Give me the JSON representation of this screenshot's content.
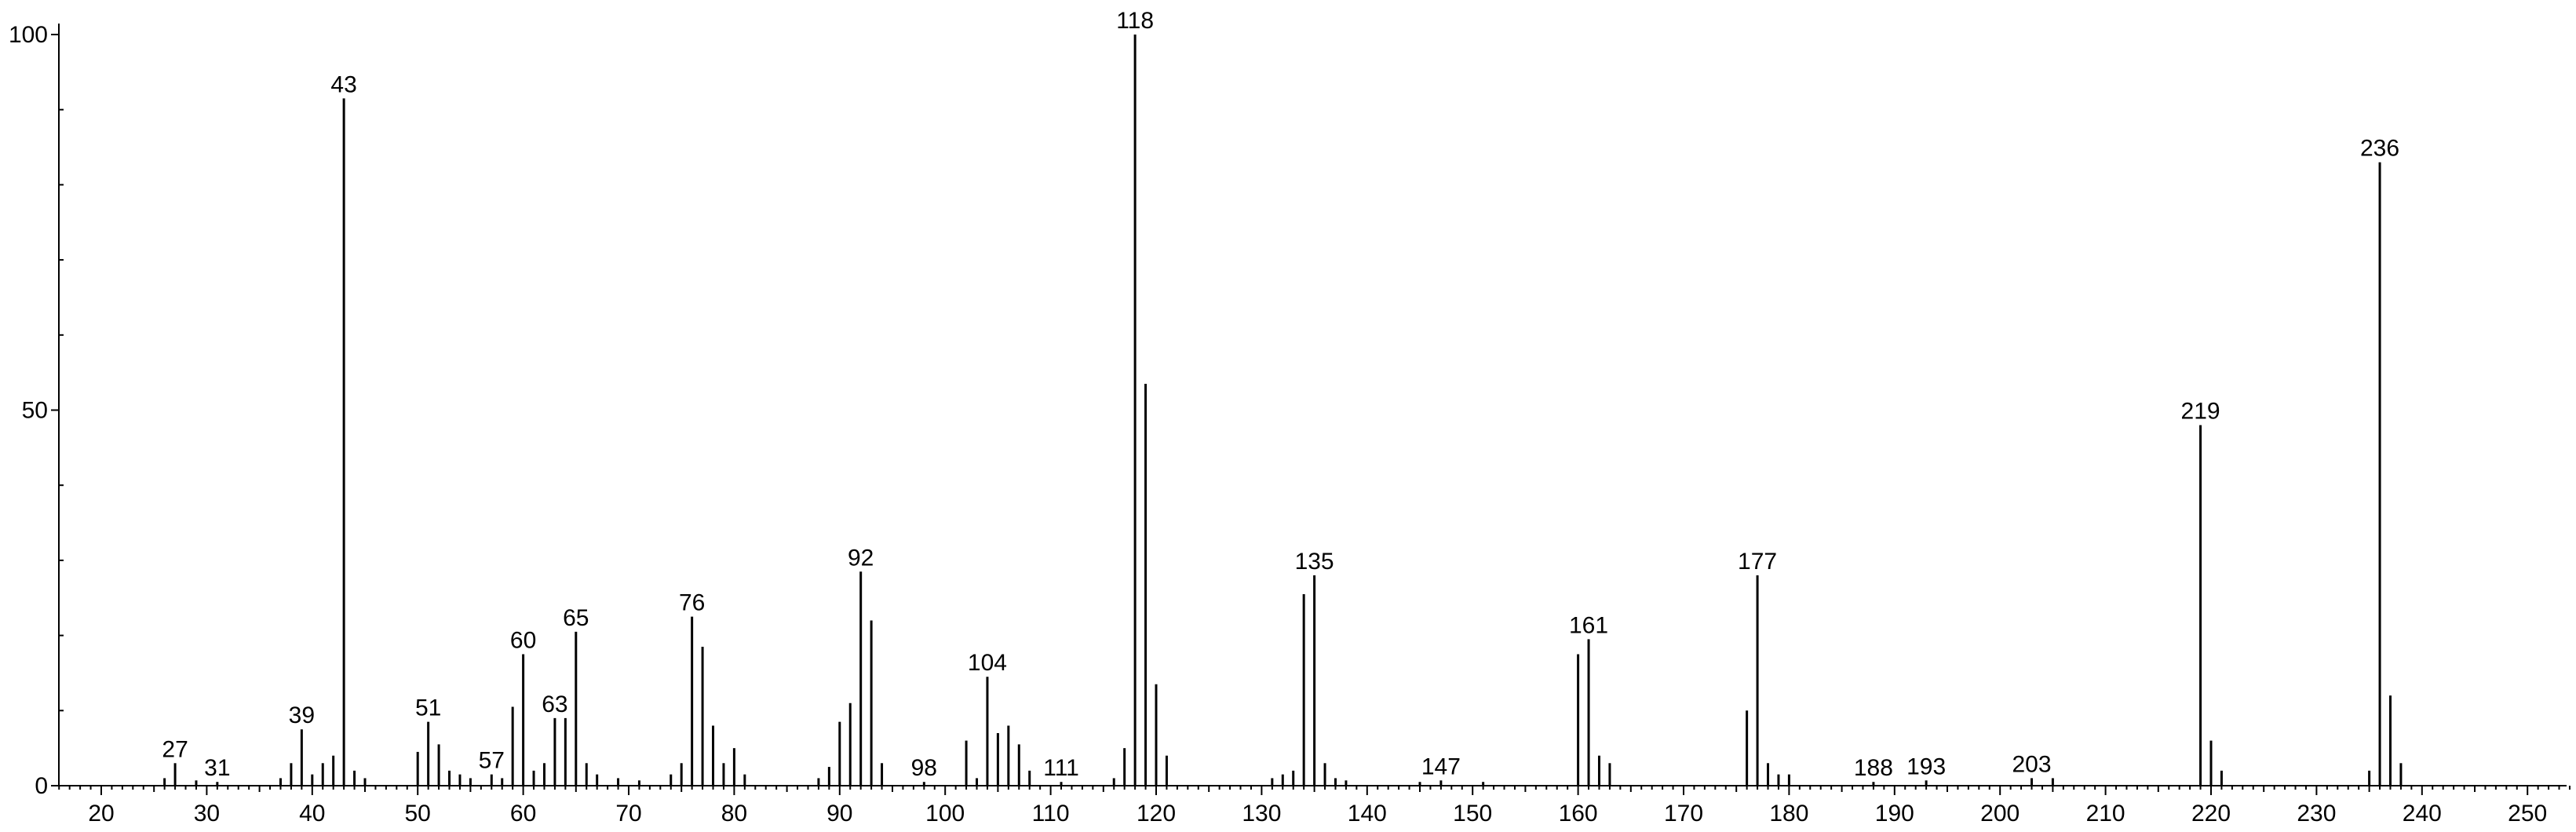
{
  "chart_data": {
    "type": "bar",
    "title": "",
    "xlabel": "",
    "ylabel": "",
    "xlim": [
      15,
      255
    ],
    "ylim": [
      0,
      100
    ],
    "grid": false,
    "x_ticks": [
      20,
      30,
      40,
      50,
      60,
      70,
      80,
      90,
      100,
      110,
      120,
      130,
      140,
      150,
      160,
      170,
      180,
      190,
      200,
      210,
      220,
      230,
      240,
      250
    ],
    "y_ticks": [
      0,
      50,
      100
    ],
    "peaks": [
      {
        "mz": 26,
        "intensity": 1
      },
      {
        "mz": 27,
        "intensity": 3,
        "label": "27"
      },
      {
        "mz": 29,
        "intensity": 0.7
      },
      {
        "mz": 31,
        "intensity": 0.5,
        "label": "31"
      },
      {
        "mz": 37,
        "intensity": 1
      },
      {
        "mz": 38,
        "intensity": 3
      },
      {
        "mz": 39,
        "intensity": 7.5,
        "label": "39"
      },
      {
        "mz": 40,
        "intensity": 1.5
      },
      {
        "mz": 41,
        "intensity": 3
      },
      {
        "mz": 42,
        "intensity": 4
      },
      {
        "mz": 43,
        "intensity": 91.5,
        "label": "43"
      },
      {
        "mz": 44,
        "intensity": 2
      },
      {
        "mz": 45,
        "intensity": 1
      },
      {
        "mz": 50,
        "intensity": 4.5
      },
      {
        "mz": 51,
        "intensity": 8.5,
        "label": "51"
      },
      {
        "mz": 52,
        "intensity": 5.5
      },
      {
        "mz": 53,
        "intensity": 2
      },
      {
        "mz": 54,
        "intensity": 1.5
      },
      {
        "mz": 55,
        "intensity": 1
      },
      {
        "mz": 57,
        "intensity": 1.5,
        "label": "57"
      },
      {
        "mz": 58,
        "intensity": 1
      },
      {
        "mz": 59,
        "intensity": 10.5
      },
      {
        "mz": 60,
        "intensity": 17.5,
        "label": "60"
      },
      {
        "mz": 61,
        "intensity": 2
      },
      {
        "mz": 62,
        "intensity": 3
      },
      {
        "mz": 63,
        "intensity": 9,
        "label": "63"
      },
      {
        "mz": 64,
        "intensity": 9
      },
      {
        "mz": 65,
        "intensity": 20.5,
        "label": "65"
      },
      {
        "mz": 66,
        "intensity": 3
      },
      {
        "mz": 67,
        "intensity": 1.5
      },
      {
        "mz": 69,
        "intensity": 1
      },
      {
        "mz": 71,
        "intensity": 0.7
      },
      {
        "mz": 74,
        "intensity": 1.5
      },
      {
        "mz": 75,
        "intensity": 3
      },
      {
        "mz": 76,
        "intensity": 22.5,
        "label": "76"
      },
      {
        "mz": 77,
        "intensity": 18.5
      },
      {
        "mz": 78,
        "intensity": 8
      },
      {
        "mz": 79,
        "intensity": 3
      },
      {
        "mz": 80,
        "intensity": 5
      },
      {
        "mz": 81,
        "intensity": 1.5
      },
      {
        "mz": 88,
        "intensity": 1
      },
      {
        "mz": 89,
        "intensity": 2.5
      },
      {
        "mz": 90,
        "intensity": 8.5
      },
      {
        "mz": 91,
        "intensity": 11
      },
      {
        "mz": 92,
        "intensity": 28.5,
        "label": "92"
      },
      {
        "mz": 93,
        "intensity": 22
      },
      {
        "mz": 94,
        "intensity": 3
      },
      {
        "mz": 98,
        "intensity": 0.5,
        "label": "98"
      },
      {
        "mz": 102,
        "intensity": 6
      },
      {
        "mz": 103,
        "intensity": 1
      },
      {
        "mz": 104,
        "intensity": 14.5,
        "label": "104"
      },
      {
        "mz": 105,
        "intensity": 7
      },
      {
        "mz": 106,
        "intensity": 8
      },
      {
        "mz": 107,
        "intensity": 5.5
      },
      {
        "mz": 108,
        "intensity": 2
      },
      {
        "mz": 111,
        "intensity": 0.5,
        "label": "111"
      },
      {
        "mz": 116,
        "intensity": 1
      },
      {
        "mz": 117,
        "intensity": 5
      },
      {
        "mz": 118,
        "intensity": 100,
        "label": "118"
      },
      {
        "mz": 119,
        "intensity": 53.5
      },
      {
        "mz": 120,
        "intensity": 13.5
      },
      {
        "mz": 121,
        "intensity": 4
      },
      {
        "mz": 131,
        "intensity": 1
      },
      {
        "mz": 132,
        "intensity": 1.5
      },
      {
        "mz": 133,
        "intensity": 2
      },
      {
        "mz": 134,
        "intensity": 25.5
      },
      {
        "mz": 135,
        "intensity": 28,
        "label": "135"
      },
      {
        "mz": 136,
        "intensity": 3
      },
      {
        "mz": 137,
        "intensity": 1
      },
      {
        "mz": 138,
        "intensity": 0.7
      },
      {
        "mz": 145,
        "intensity": 0.5
      },
      {
        "mz": 147,
        "intensity": 0.7,
        "label": "147"
      },
      {
        "mz": 151,
        "intensity": 0.5
      },
      {
        "mz": 160,
        "intensity": 17.5
      },
      {
        "mz": 161,
        "intensity": 19.5,
        "label": "161"
      },
      {
        "mz": 162,
        "intensity": 4
      },
      {
        "mz": 163,
        "intensity": 3
      },
      {
        "mz": 176,
        "intensity": 10
      },
      {
        "mz": 177,
        "intensity": 28,
        "label": "177"
      },
      {
        "mz": 178,
        "intensity": 3
      },
      {
        "mz": 179,
        "intensity": 1.5
      },
      {
        "mz": 180,
        "intensity": 1.5
      },
      {
        "mz": 188,
        "intensity": 0.5,
        "label": "188"
      },
      {
        "mz": 193,
        "intensity": 0.7,
        "label": "193"
      },
      {
        "mz": 203,
        "intensity": 1,
        "label": "203"
      },
      {
        "mz": 205,
        "intensity": 1
      },
      {
        "mz": 219,
        "intensity": 48,
        "label": "219"
      },
      {
        "mz": 220,
        "intensity": 6
      },
      {
        "mz": 221,
        "intensity": 2
      },
      {
        "mz": 235,
        "intensity": 2
      },
      {
        "mz": 236,
        "intensity": 83,
        "label": "236"
      },
      {
        "mz": 237,
        "intensity": 12
      },
      {
        "mz": 238,
        "intensity": 3
      }
    ]
  }
}
